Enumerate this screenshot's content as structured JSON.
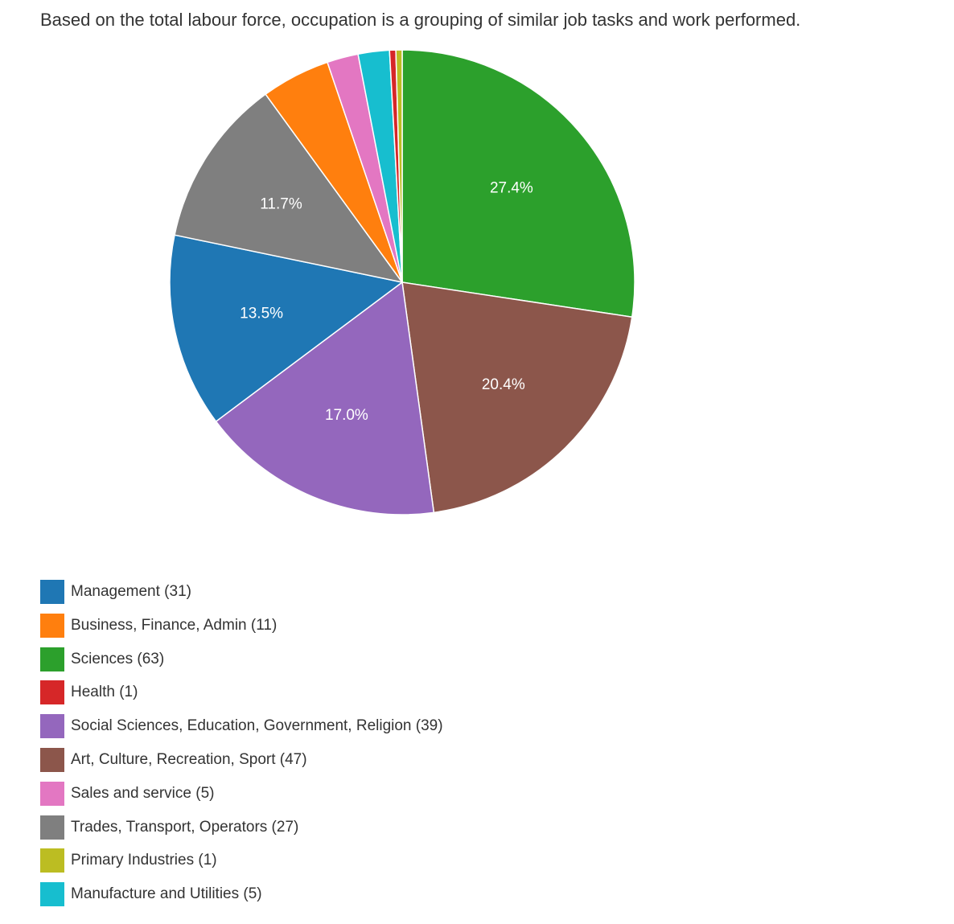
{
  "title": "Based on the total labour force, occupation is a grouping of similar job tasks and work performed.",
  "chart_data": {
    "type": "pie",
    "total": 230,
    "legend_position": "bottom-left",
    "slices": [
      {
        "label": "Management (31)",
        "value": 31,
        "color": "#1f77b4",
        "pct_label": "13.5%"
      },
      {
        "label": "Business, Finance, Admin (11)",
        "value": 11,
        "color": "#ff7f0e",
        "pct_label": ""
      },
      {
        "label": "Sciences (63)",
        "value": 63,
        "color": "#2ca02c",
        "pct_label": "27.4%"
      },
      {
        "label": "Health (1)",
        "value": 1,
        "color": "#d62728",
        "pct_label": ""
      },
      {
        "label": "Social Sciences, Education, Government, Religion (39)",
        "value": 39,
        "color": "#9467bd",
        "pct_label": "17.0%"
      },
      {
        "label": "Art, Culture, Recreation, Sport (47)",
        "value": 47,
        "color": "#8c564b",
        "pct_label": "20.4%"
      },
      {
        "label": "Sales and service (5)",
        "value": 5,
        "color": "#e377c2",
        "pct_label": ""
      },
      {
        "label": "Trades, Transport, Operators (27)",
        "value": 27,
        "color": "#7f7f7f",
        "pct_label": "11.7%"
      },
      {
        "label": "Primary Industries (1)",
        "value": 1,
        "color": "#bcbd22",
        "pct_label": ""
      },
      {
        "label": "Manufacture and Utilities (5)",
        "value": 5,
        "color": "#17becf",
        "pct_label": ""
      }
    ],
    "draw_order": [
      2,
      5,
      4,
      0,
      7,
      1,
      6,
      9,
      3,
      8
    ]
  }
}
